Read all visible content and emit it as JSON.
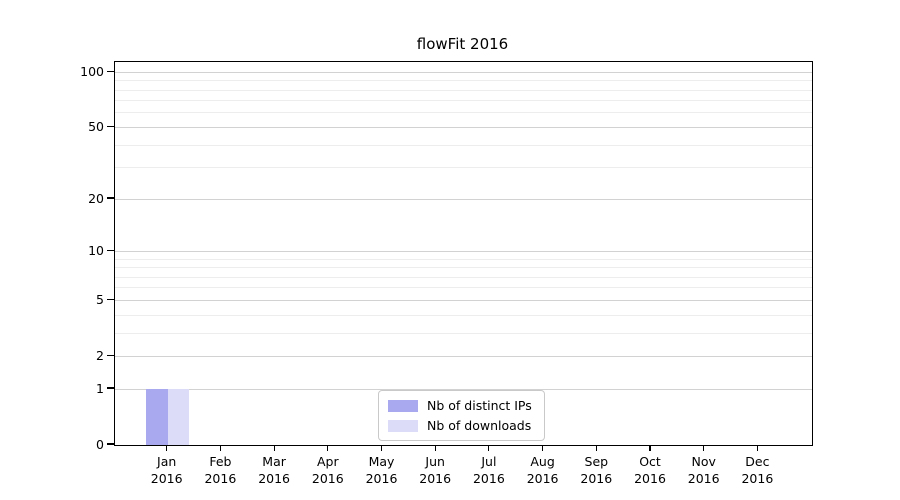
{
  "figure": {
    "title": "flowFit 2016"
  },
  "chart_data": {
    "type": "bar",
    "title": "flowFit 2016",
    "categories": [
      {
        "month": "Jan",
        "year": "2016"
      },
      {
        "month": "Feb",
        "year": "2016"
      },
      {
        "month": "Mar",
        "year": "2016"
      },
      {
        "month": "Apr",
        "year": "2016"
      },
      {
        "month": "May",
        "year": "2016"
      },
      {
        "month": "Jun",
        "year": "2016"
      },
      {
        "month": "Jul",
        "year": "2016"
      },
      {
        "month": "Aug",
        "year": "2016"
      },
      {
        "month": "Sep",
        "year": "2016"
      },
      {
        "month": "Oct",
        "year": "2016"
      },
      {
        "month": "Nov",
        "year": "2016"
      },
      {
        "month": "Dec",
        "year": "2016"
      }
    ],
    "series": [
      {
        "name": "Nb of distinct IPs",
        "color": "#a9a9f0",
        "values": [
          1,
          0,
          0,
          0,
          0,
          0,
          0,
          0,
          0,
          0,
          0,
          0
        ]
      },
      {
        "name": "Nb of downloads",
        "color": "#dcdcf8",
        "values": [
          1,
          0,
          0,
          0,
          0,
          0,
          0,
          0,
          0,
          0,
          0,
          0
        ]
      }
    ],
    "xlabel": "",
    "ylabel": "",
    "yscale": "log1p",
    "ylim": [
      0,
      113.6
    ],
    "yticks": [
      0,
      1,
      2,
      5,
      10,
      20,
      50,
      100
    ],
    "yticks_minor": [
      3,
      4,
      6,
      7,
      8,
      9,
      30,
      40,
      60,
      70,
      80,
      90
    ],
    "grid": "horizontal-only",
    "grid_major_color": "#d2d2d2",
    "grid_minor_color": "#ededed",
    "axis_color": "#000000",
    "legend": {
      "position": "inside-lower-center",
      "entries": [
        "Nb of distinct IPs",
        "Nb of downloads"
      ]
    }
  }
}
